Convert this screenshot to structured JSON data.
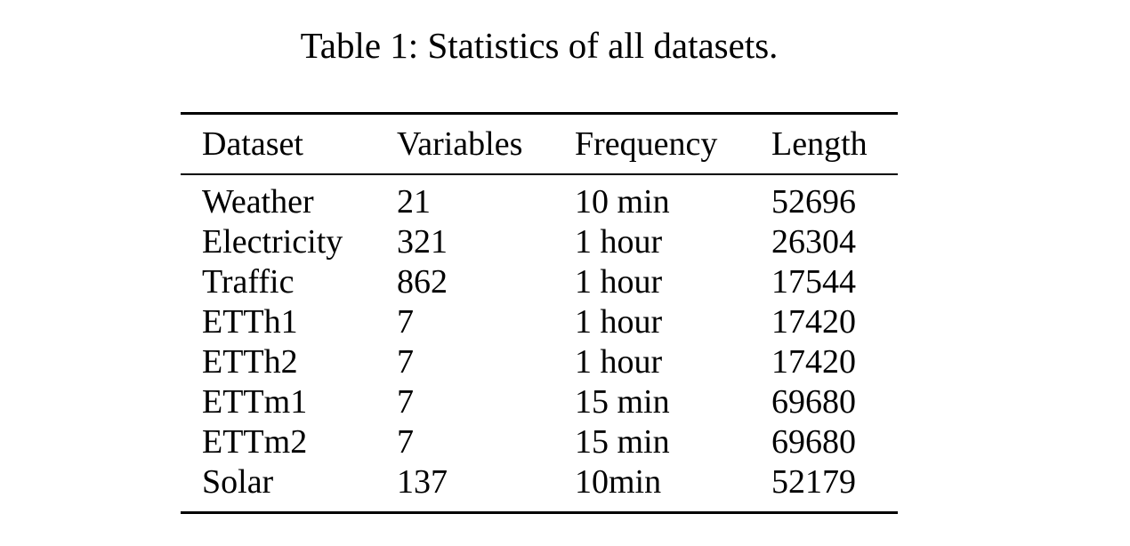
{
  "caption": "Table 1: Statistics of all datasets.",
  "table": {
    "headers": [
      "Dataset",
      "Variables",
      "Frequency",
      "Length"
    ],
    "rows": [
      [
        "Weather",
        "21",
        "10 min",
        "52696"
      ],
      [
        "Electricity",
        "321",
        "1 hour",
        "26304"
      ],
      [
        "Traffic",
        "862",
        "1 hour",
        "17544"
      ],
      [
        "ETTh1",
        "7",
        "1 hour",
        "17420"
      ],
      [
        "ETTh2",
        "7",
        "1 hour",
        "17420"
      ],
      [
        "ETTm1",
        "7",
        "15 min",
        "69680"
      ],
      [
        "ETTm2",
        "7",
        "15 min",
        "69680"
      ],
      [
        "Solar",
        "137",
        "10min",
        "52179"
      ]
    ]
  }
}
